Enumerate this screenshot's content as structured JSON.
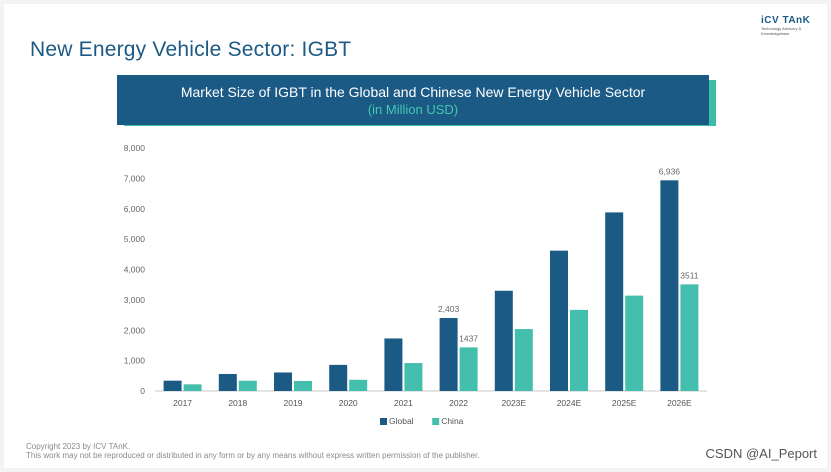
{
  "page": {
    "title": "New Energy Vehicle Sector: IGBT",
    "logo_main": "iCV TAnK",
    "logo_sub": "Technology Advisory & Knowledgebase",
    "footer_line1": "Copyright  2023 by ICV TAnK.",
    "footer_line2": "This work may not be reproduced or distributed in any form or by any means without express written permission of the publisher.",
    "watermark": "CSDN @AI_Peport"
  },
  "chart_data": {
    "type": "bar",
    "title": "Market Size of IGBT in the Global and Chinese New Energy Vehicle Sector",
    "subtitle": "(in Million USD)",
    "categories": [
      "2017",
      "2018",
      "2019",
      "2020",
      "2021",
      "2022",
      "2023E",
      "2024E",
      "2025E",
      "2026E"
    ],
    "series": [
      {
        "name": "Global",
        "color": "#1c5a86",
        "values": [
          340,
          560,
          610,
          860,
          1730,
          2403,
          3300,
          4620,
          5880,
          6936
        ]
      },
      {
        "name": "China",
        "color": "#45bfad",
        "values": [
          220,
          340,
          330,
          370,
          920,
          1437,
          2040,
          2670,
          3140,
          3511
        ]
      }
    ],
    "data_labels": [
      {
        "series": 0,
        "index": 5,
        "text": "2,403"
      },
      {
        "series": 1,
        "index": 5,
        "text": "1437"
      },
      {
        "series": 0,
        "index": 9,
        "text": "6,936"
      },
      {
        "series": 1,
        "index": 9,
        "text": "3511"
      }
    ],
    "ylim": [
      0,
      8000
    ],
    "yticks": [
      0,
      1000,
      2000,
      3000,
      4000,
      5000,
      6000,
      7000,
      8000
    ],
    "ytick_labels": [
      "0",
      "1,000",
      "2,000",
      "3,000",
      "4,000",
      "5,000",
      "6,000",
      "7,000",
      "8,000"
    ],
    "grid": false,
    "legend_position": "bottom"
  }
}
